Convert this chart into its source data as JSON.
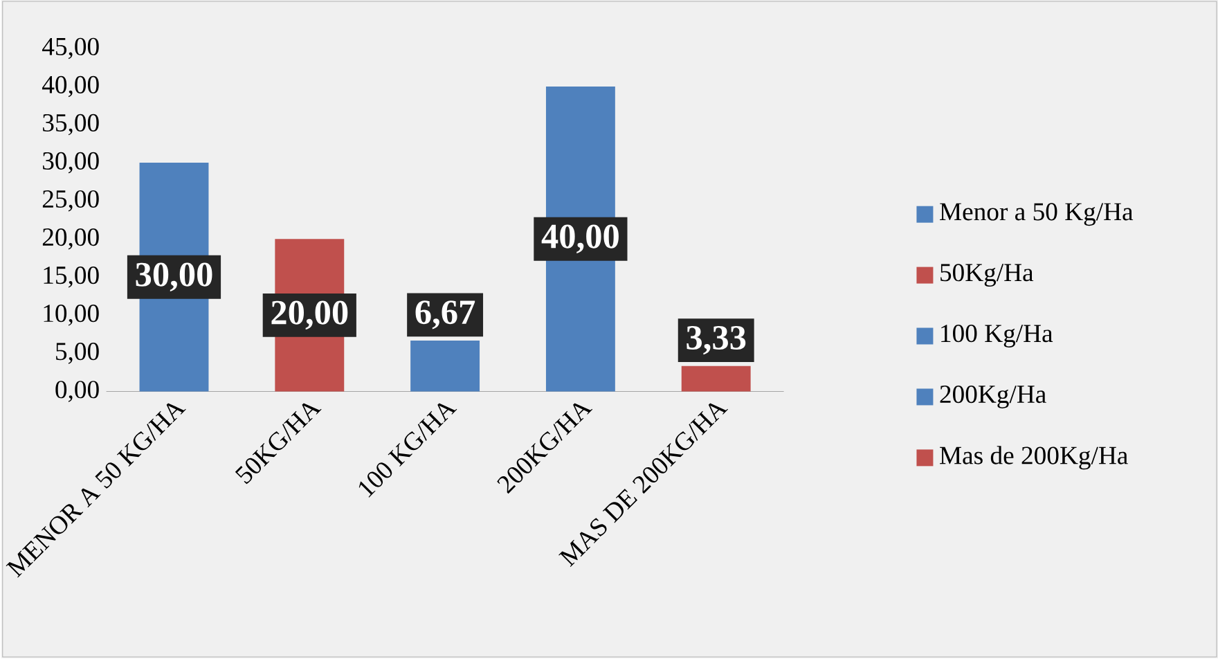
{
  "chart_data": {
    "type": "bar",
    "categories": [
      "MENOR A 50 KG/HA",
      "50KG/HA",
      "100 KG/HA",
      "200KG/HA",
      "MAS DE 200KG/HA"
    ],
    "series": [
      {
        "name": "Menor a 50 Kg/Ha",
        "color": "#4f81bd",
        "values": [
          30,
          null,
          null,
          null,
          null
        ],
        "value_labels": [
          "30,00",
          null,
          null,
          null,
          null
        ]
      },
      {
        "name": "50Kg/Ha",
        "color": "#c0504d",
        "values": [
          null,
          20,
          null,
          null,
          null
        ],
        "value_labels": [
          null,
          "20,00",
          null,
          null,
          null
        ]
      },
      {
        "name": "100 Kg/Ha",
        "color": "#4f81bd",
        "values": [
          null,
          null,
          6.67,
          null,
          null
        ],
        "value_labels": [
          null,
          null,
          "6,67",
          null,
          null
        ]
      },
      {
        "name": "200Kg/Ha",
        "color": "#4f81bd",
        "values": [
          null,
          null,
          null,
          40,
          null
        ],
        "value_labels": [
          null,
          null,
          null,
          "40,00",
          null
        ]
      },
      {
        "name": "Mas de 200Kg/Ha",
        "color": "#c0504d",
        "values": [
          null,
          null,
          null,
          null,
          3.33
        ],
        "value_labels": [
          null,
          null,
          null,
          null,
          "3,33"
        ]
      }
    ],
    "ylim": [
      0,
      45
    ],
    "yticks": [
      {
        "value": 0,
        "label": "0,00"
      },
      {
        "value": 5,
        "label": "5,00"
      },
      {
        "value": 10,
        "label": "10,00"
      },
      {
        "value": 15,
        "label": "15,00"
      },
      {
        "value": 20,
        "label": "20,00"
      },
      {
        "value": 25,
        "label": "25,00"
      },
      {
        "value": 30,
        "label": "30,00"
      },
      {
        "value": 35,
        "label": "35,00"
      },
      {
        "value": 40,
        "label": "40,00"
      },
      {
        "value": 45,
        "label": "45,00"
      }
    ],
    "grid": false,
    "legend": "right"
  }
}
